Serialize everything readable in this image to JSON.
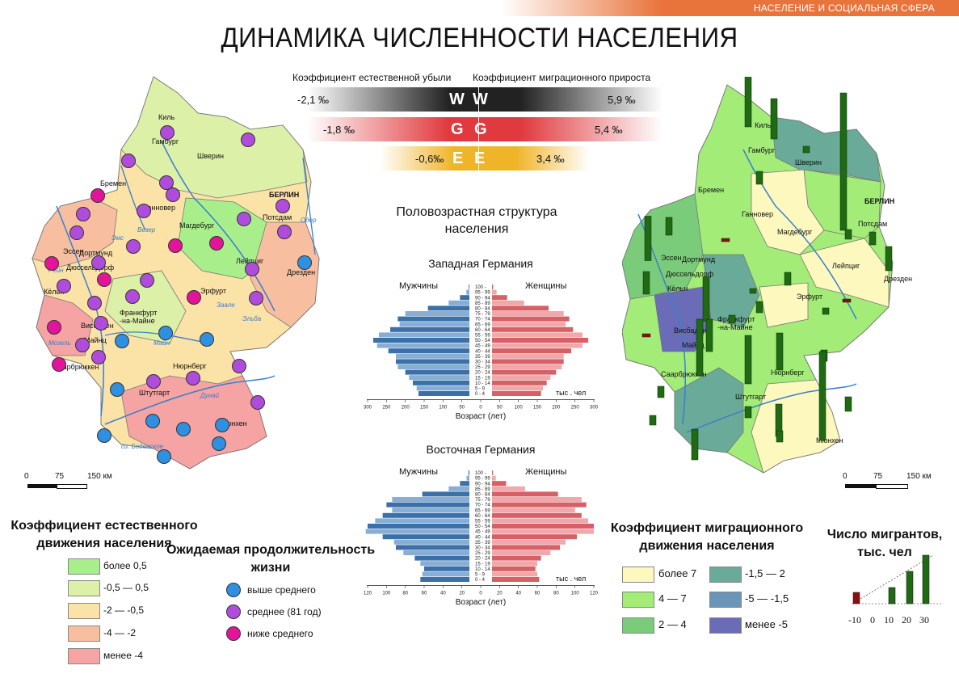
{
  "header": {
    "section": "НАСЕЛЕНИЕ И СОЦИАЛЬНАЯ СФЕРА",
    "title": "ДИНАМИКА ЧИСЛЕННОСТИ НАСЕЛЕНИЯ"
  },
  "coef_header": {
    "left": "Коэффициент естественной убыли",
    "right": "Коэффициент миграционного прироста"
  },
  "coef_bars": [
    {
      "left_value": "-2,1 ‰",
      "letter": "W",
      "right_value": "5,9 ‰",
      "color": "#222222"
    },
    {
      "left_value": "-1,8 ‰",
      "letter": "G",
      "right_value": "5,4 ‰",
      "color": "#e0393e"
    },
    {
      "left_value": "-0,6‰",
      "letter": "E",
      "right_value": "3,4 ‰",
      "color": "#f0b429"
    }
  ],
  "pyramid_section_title": "Половозрастная структура населения",
  "pyramids": {
    "age_groups": [
      "0 - 4",
      "5 - 9",
      "10 - 14",
      "15 - 19",
      "20 - 24",
      "25 - 29",
      "30 - 34",
      "35 - 39",
      "40 - 44",
      "45 - 49",
      "50 - 54",
      "55 - 59",
      "60 - 64",
      "65 - 69",
      "70 - 74",
      "75 - 79",
      "80 - 84",
      "85 - 89",
      "90 - 94",
      "95 - 99",
      "100 -"
    ],
    "male_label": "Мужчины",
    "female_label": "Женщины",
    "x_axis_label": "Возраст (лет)",
    "units": "тыс . чел",
    "west": {
      "title": "Западная Германия",
      "ticks": [
        "300",
        "250",
        "200",
        "150",
        "100",
        "50",
        "0",
        "50",
        "100",
        "150",
        "200",
        "250",
        "300"
      ],
      "max": 300,
      "male": [
        135,
        140,
        150,
        160,
        170,
        190,
        195,
        195,
        215,
        245,
        255,
        240,
        210,
        185,
        190,
        170,
        110,
        55,
        25,
        8,
        2
      ],
      "female": [
        130,
        135,
        145,
        155,
        170,
        185,
        190,
        190,
        210,
        240,
        255,
        240,
        215,
        195,
        205,
        190,
        150,
        85,
        40,
        12,
        3
      ]
    },
    "east": {
      "title": "Восточная Германия",
      "ticks": [
        "120",
        "100",
        "80",
        "60",
        "40",
        "20",
        "0",
        "20",
        "40",
        "60",
        "80",
        "100",
        "120"
      ],
      "max": 120,
      "male": [
        52,
        50,
        48,
        52,
        58,
        70,
        78,
        80,
        92,
        110,
        108,
        100,
        92,
        82,
        88,
        82,
        50,
        22,
        10,
        3,
        1
      ],
      "female": [
        50,
        48,
        46,
        48,
        52,
        62,
        72,
        78,
        90,
        108,
        108,
        102,
        95,
        88,
        100,
        95,
        70,
        35,
        15,
        4,
        1
      ]
    }
  },
  "left_map": {
    "scale": {
      "ticks": [
        "0",
        "75",
        "150 км"
      ]
    },
    "cities": [
      "Киль",
      "Гамбург",
      "Шверин",
      "Бремен",
      "БЕРЛИН",
      "Потсдам",
      "Ганновер",
      "Магдебург",
      "Дортмунд",
      "Эссен",
      "Дюссельдорф",
      "Лейпциг",
      "Дрезден",
      "Кёльн",
      "Эрфурт",
      "Франкфурт -на-Майне",
      "Висбаден",
      "Майнц",
      "Саарбрюккен",
      "Нюрнберг",
      "Штутгарт",
      "Мюнхен"
    ],
    "rivers": [
      "Эльба",
      "Везер",
      "Эмс",
      "Рейн",
      "Мозель",
      "Майн",
      "Дунай",
      "Одер",
      "Заале",
      "оз. Боденское"
    ],
    "classes": [
      {
        "label": "более 0,5",
        "color": "#a8ef8c"
      },
      {
        "label": "-0,5 — 0,5",
        "color": "#dcf0a8"
      },
      {
        "label": "-2 — -0,5",
        "color": "#fbe2a6"
      },
      {
        "label": "-4 — -2",
        "color": "#f7bfa0"
      },
      {
        "label": "менее -4",
        "color": "#f5a3a3"
      }
    ]
  },
  "right_map": {
    "scale": {
      "ticks": [
        "0",
        "75",
        "150 км"
      ]
    },
    "cities": [
      "Киль",
      "Гамбург",
      "Шверин",
      "Бремен",
      "БЕРЛИН",
      "Потсдам",
      "Ганновер",
      "Магдебург",
      "Дортмунд",
      "Эссен",
      "Дюссельдорф",
      "Лейпциг",
      "Дрезден",
      "Кёльн",
      "Эрфурт",
      "Франкфурт -на-Майне",
      "Висбаден",
      "Майнц",
      "Саарбрюккен",
      "Нюрнберг",
      "Штутгарт",
      "Мюнхен"
    ],
    "classes": [
      {
        "label": "более 7",
        "color": "#fcf8be"
      },
      {
        "label": "4 — 7",
        "color": "#a4ec78"
      },
      {
        "label": "2 — 4",
        "color": "#7acc7a"
      },
      {
        "label": "-1,5 — 2",
        "color": "#6aaa98"
      },
      {
        "label": "-5 — -1,5",
        "color": "#6a94b8"
      },
      {
        "label": "менее -5",
        "color": "#6a6cb8"
      }
    ]
  },
  "legend_natural": {
    "title": "Коэффициент естественного движения населения"
  },
  "legend_life": {
    "title": "Ожидаемая продолжительность жизни",
    "items": [
      {
        "label": "выше среднего",
        "color": "#2f8fe0"
      },
      {
        "label": "среднее (81 год)",
        "color": "#b04cdc"
      },
      {
        "label": "ниже среднего",
        "color": "#e2149a"
      }
    ]
  },
  "legend_migration": {
    "title": "Коэффициент миграционного движения населения"
  },
  "legend_migrants": {
    "title": "Число мигрантов, тыс. чел",
    "ticks": [
      "-10",
      "0",
      "10",
      "20",
      "30"
    ],
    "values": [
      -10,
      10,
      20,
      30
    ],
    "neg_color": "#8b0f0f",
    "pos_color": "#1f6a12"
  }
}
